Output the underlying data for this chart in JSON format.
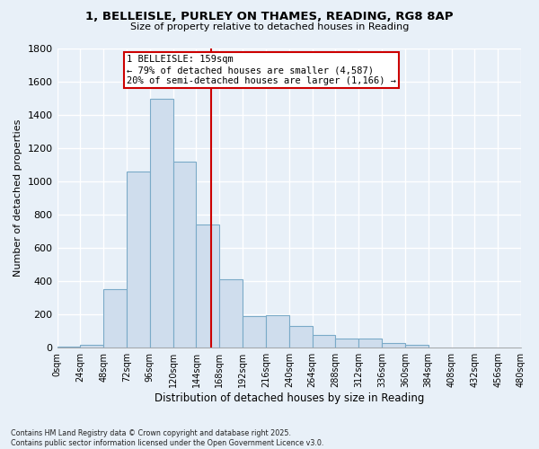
{
  "title": "1, BELLEISLE, PURLEY ON THAMES, READING, RG8 8AP",
  "subtitle": "Size of property relative to detached houses in Reading",
  "xlabel": "Distribution of detached houses by size in Reading",
  "ylabel": "Number of detached properties",
  "bin_edges": [
    0,
    24,
    48,
    72,
    96,
    120,
    144,
    168,
    192,
    216,
    240,
    264,
    288,
    312,
    336,
    360,
    384,
    408,
    432,
    456,
    480
  ],
  "bar_heights": [
    5,
    20,
    355,
    1060,
    1500,
    1120,
    740,
    410,
    190,
    195,
    130,
    80,
    55,
    55,
    30,
    20,
    0,
    0,
    0,
    0
  ],
  "bar_color": "#cfdded",
  "bar_edge_color": "#7aaac8",
  "property_size": 159,
  "annotation_title": "1 BELLEISLE: 159sqm",
  "annotation_line1": "← 79% of detached houses are smaller (4,587)",
  "annotation_line2": "20% of semi-detached houses are larger (1,166) →",
  "vline_color": "#cc0000",
  "annotation_box_color": "#ffffff",
  "annotation_box_edge": "#cc0000",
  "ylim": [
    0,
    1800
  ],
  "yticks": [
    0,
    200,
    400,
    600,
    800,
    1000,
    1200,
    1400,
    1600,
    1800
  ],
  "bg_color": "#e8f0f8",
  "grid_color": "#ffffff",
  "footnote1": "Contains HM Land Registry data © Crown copyright and database right 2025.",
  "footnote2": "Contains public sector information licensed under the Open Government Licence v3.0."
}
